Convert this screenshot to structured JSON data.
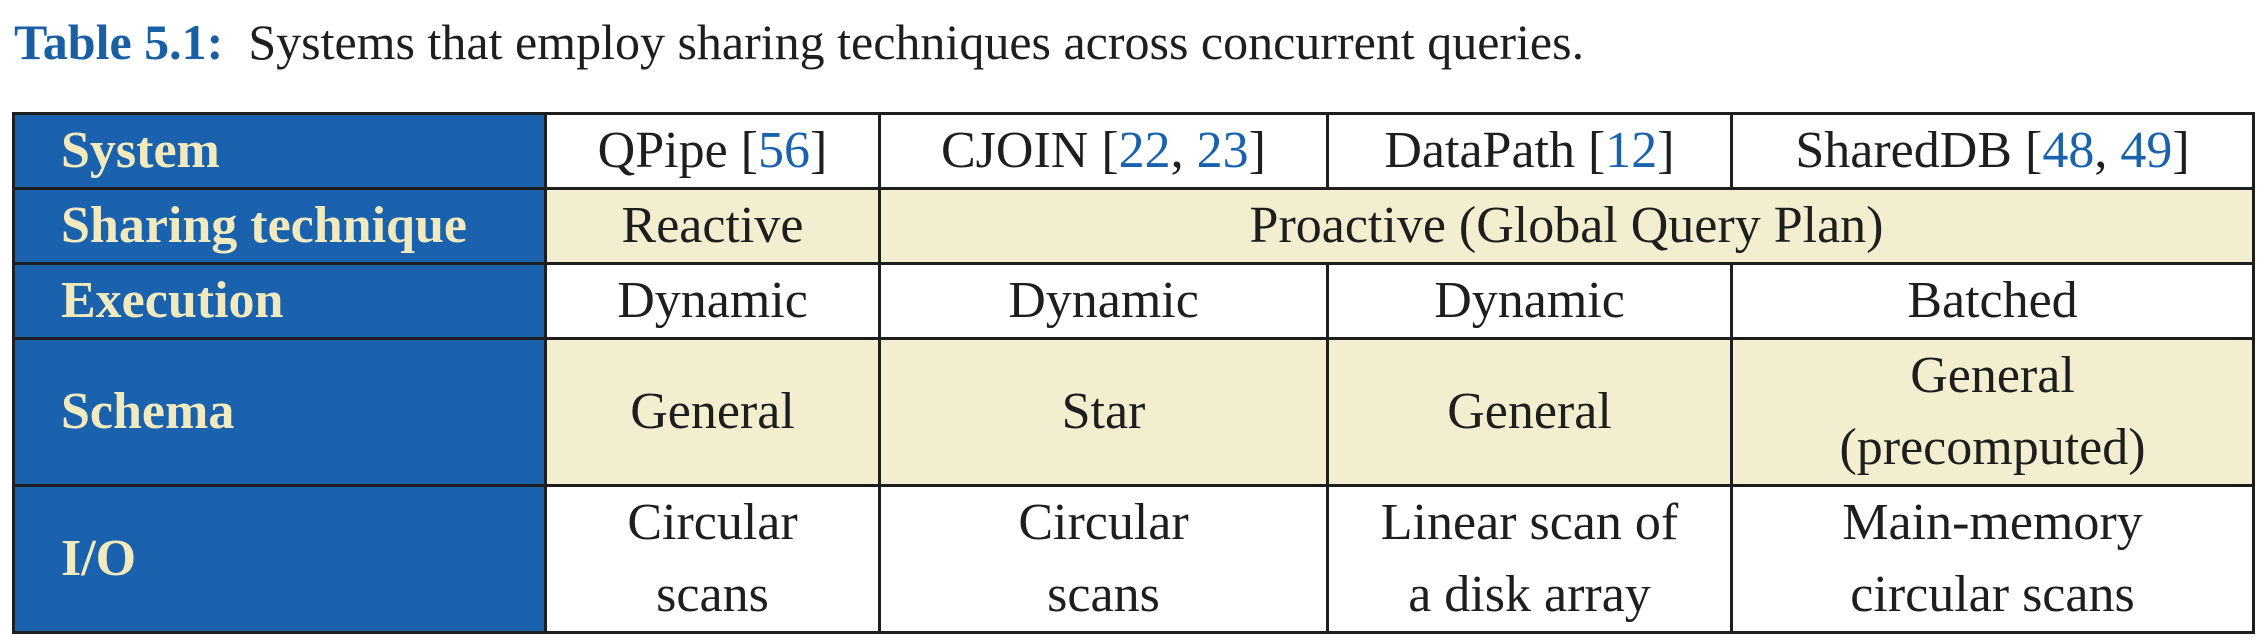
{
  "caption": {
    "label": "Table 5.1:",
    "text": "Systems that employ sharing techniques across concurrent queries."
  },
  "table": {
    "row_headers": {
      "system": "System",
      "sharing": "Sharing technique",
      "execution": "Execution",
      "schema": "Schema",
      "io": "I/O"
    },
    "systems": [
      {
        "name": "QPipe",
        "open": " [",
        "refs": [
          "56"
        ],
        "sep": ", ",
        "close": "]"
      },
      {
        "name": "CJOIN",
        "open": " [",
        "refs": [
          "22",
          "23"
        ],
        "sep": ", ",
        "close": "]"
      },
      {
        "name": "DataPath",
        "open": " [",
        "refs": [
          "12"
        ],
        "sep": ", ",
        "close": "]"
      },
      {
        "name": "SharedDB",
        "open": " [",
        "refs": [
          "48",
          "49"
        ],
        "sep": ", ",
        "close": "]"
      }
    ],
    "sharing": {
      "reactive": "Reactive",
      "proactive": "Proactive (Global Query Plan)"
    },
    "execution": [
      "Dynamic",
      "Dynamic",
      "Dynamic",
      "Batched"
    ],
    "schema": [
      "General",
      "Star",
      "General",
      "General\n(precomputed)"
    ],
    "io": [
      "Circular\nscans",
      "Circular\nscans",
      "Linear scan of\na disk array",
      "Main-memory\ncircular scans"
    ]
  }
}
